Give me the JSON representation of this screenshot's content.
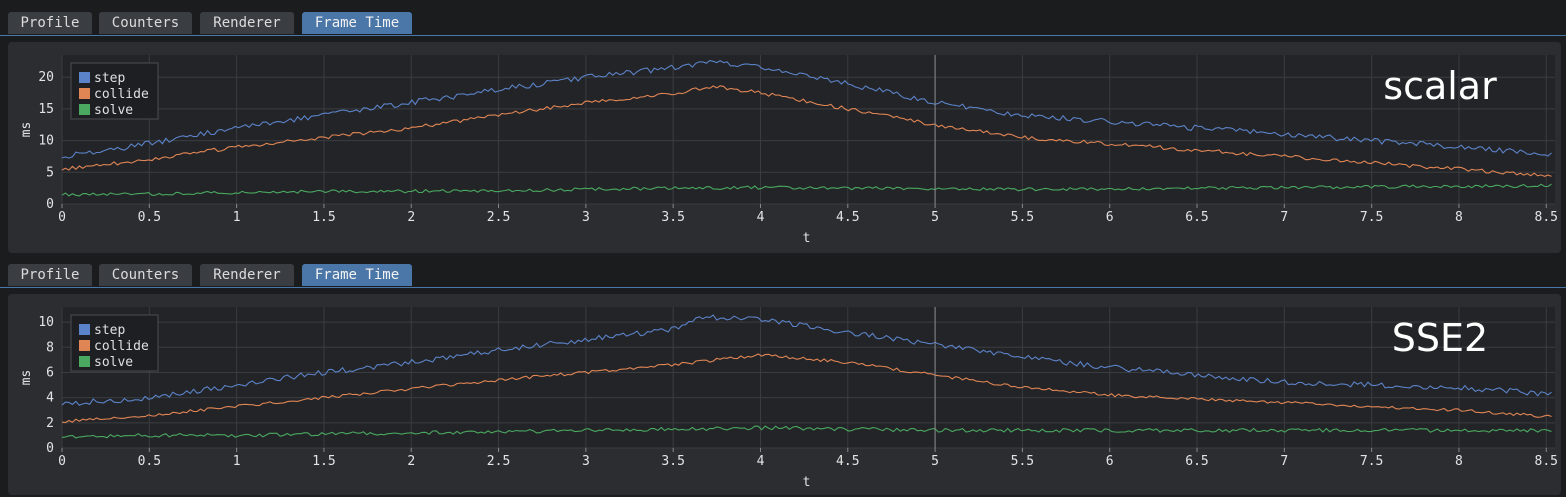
{
  "colors": {
    "step": "#5b83c9",
    "collide": "#e08554",
    "solve": "#4aa860",
    "accent": "#4a76a8"
  },
  "panels": [
    {
      "tabs": [
        "Profile",
        "Counters",
        "Renderer",
        "Frame Time"
      ],
      "active_tab": "Frame Time",
      "overlay_label": "scalar",
      "chart_data": {
        "type": "line",
        "title": "",
        "xlabel": "t",
        "ylabel": "ms",
        "xlim": [
          0,
          8.55
        ],
        "ylim": [
          0,
          23.5
        ],
        "x_ticks": [
          0,
          0.5,
          1,
          1.5,
          2,
          2.5,
          3,
          3.5,
          4,
          4.5,
          5,
          5.5,
          6,
          6.5,
          7,
          7.5,
          8,
          8.5
        ],
        "y_ticks": [
          0,
          5,
          10,
          15,
          20
        ],
        "grid": true,
        "legend_position": "top-left",
        "cursor_x": 5,
        "series": [
          {
            "name": "step",
            "x": [
              0,
              0.5,
              1,
              1.5,
              2,
              2.5,
              3,
              3.5,
              3.75,
              4,
              4.5,
              5,
              5.5,
              6,
              6.5,
              7,
              7.5,
              8,
              8.5
            ],
            "values": [
              7.5,
              9.5,
              12,
              14,
              16,
              18,
              20,
              21.5,
              22.5,
              21.5,
              19,
              16,
              14,
              13,
              12,
              11,
              10,
              9,
              8
            ]
          },
          {
            "name": "collide",
            "x": [
              0,
              0.5,
              1,
              1.5,
              2,
              2.5,
              3,
              3.5,
              3.75,
              4,
              4.5,
              5,
              5.5,
              6,
              6.5,
              7,
              7.5,
              8,
              8.5
            ],
            "values": [
              5.5,
              7,
              9,
              10.5,
              12,
              14,
              16,
              17.5,
              18.5,
              17.5,
              15,
              12.5,
              10.5,
              9.5,
              8.5,
              7.5,
              6.5,
              5.5,
              4.5
            ]
          },
          {
            "name": "solve",
            "x": [
              0,
              0.5,
              1,
              1.5,
              2,
              2.5,
              3,
              3.5,
              4,
              4.5,
              5,
              5.5,
              6,
              6.5,
              7,
              7.5,
              8,
              8.5
            ],
            "values": [
              1.5,
              1.6,
              1.8,
              2,
              2,
              2.1,
              2.3,
              2.5,
              2.6,
              2.5,
              2.4,
              2.3,
              2.4,
              2.5,
              2.6,
              2.7,
              2.8,
              2.9
            ]
          }
        ]
      }
    },
    {
      "tabs": [
        "Profile",
        "Counters",
        "Renderer",
        "Frame Time"
      ],
      "active_tab": "Frame Time",
      "overlay_label": "SSE2",
      "chart_data": {
        "type": "line",
        "title": "",
        "xlabel": "t",
        "ylabel": "ms",
        "xlim": [
          0,
          8.55
        ],
        "ylim": [
          0,
          11.2
        ],
        "x_ticks": [
          0,
          0.5,
          1,
          1.5,
          2,
          2.5,
          3,
          3.5,
          4,
          4.5,
          5,
          5.5,
          6,
          6.5,
          7,
          7.5,
          8,
          8.5
        ],
        "y_ticks": [
          0,
          2,
          4,
          6,
          8,
          10
        ],
        "grid": true,
        "legend_position": "top-left",
        "cursor_x": 5,
        "series": [
          {
            "name": "step",
            "x": [
              0,
              0.5,
              1,
              1.5,
              2,
              2.5,
              3,
              3.5,
              3.65,
              4,
              4.5,
              5,
              5.5,
              6,
              6.5,
              7,
              7.5,
              8,
              8.5
            ],
            "values": [
              3.5,
              4,
              5,
              6,
              6.8,
              7.8,
              8.6,
              9.4,
              10.4,
              10.2,
              9.2,
              8.2,
              7.2,
              6.4,
              5.8,
              5.2,
              5,
              4.8,
              4.3
            ]
          },
          {
            "name": "collide",
            "x": [
              0,
              0.5,
              1,
              1.5,
              2,
              2.5,
              3,
              3.5,
              4,
              4.5,
              5,
              5.5,
              6,
              6.5,
              7,
              7.5,
              8,
              8.5
            ],
            "values": [
              2.1,
              2.6,
              3.3,
              4,
              4.7,
              5.4,
              6,
              6.6,
              7.4,
              6.8,
              5.8,
              4.8,
              4.2,
              3.9,
              3.6,
              3.3,
              3,
              2.5
            ]
          },
          {
            "name": "solve",
            "x": [
              0,
              0.5,
              1,
              1.5,
              2,
              2.5,
              3,
              3.5,
              4,
              4.5,
              5,
              5.5,
              6,
              6.5,
              7,
              7.5,
              8,
              8.5
            ],
            "values": [
              0.9,
              1,
              1,
              1.1,
              1.2,
              1.3,
              1.4,
              1.5,
              1.6,
              1.5,
              1.4,
              1.4,
              1.4,
              1.4,
              1.4,
              1.4,
              1.4,
              1.4
            ]
          }
        ]
      }
    }
  ]
}
